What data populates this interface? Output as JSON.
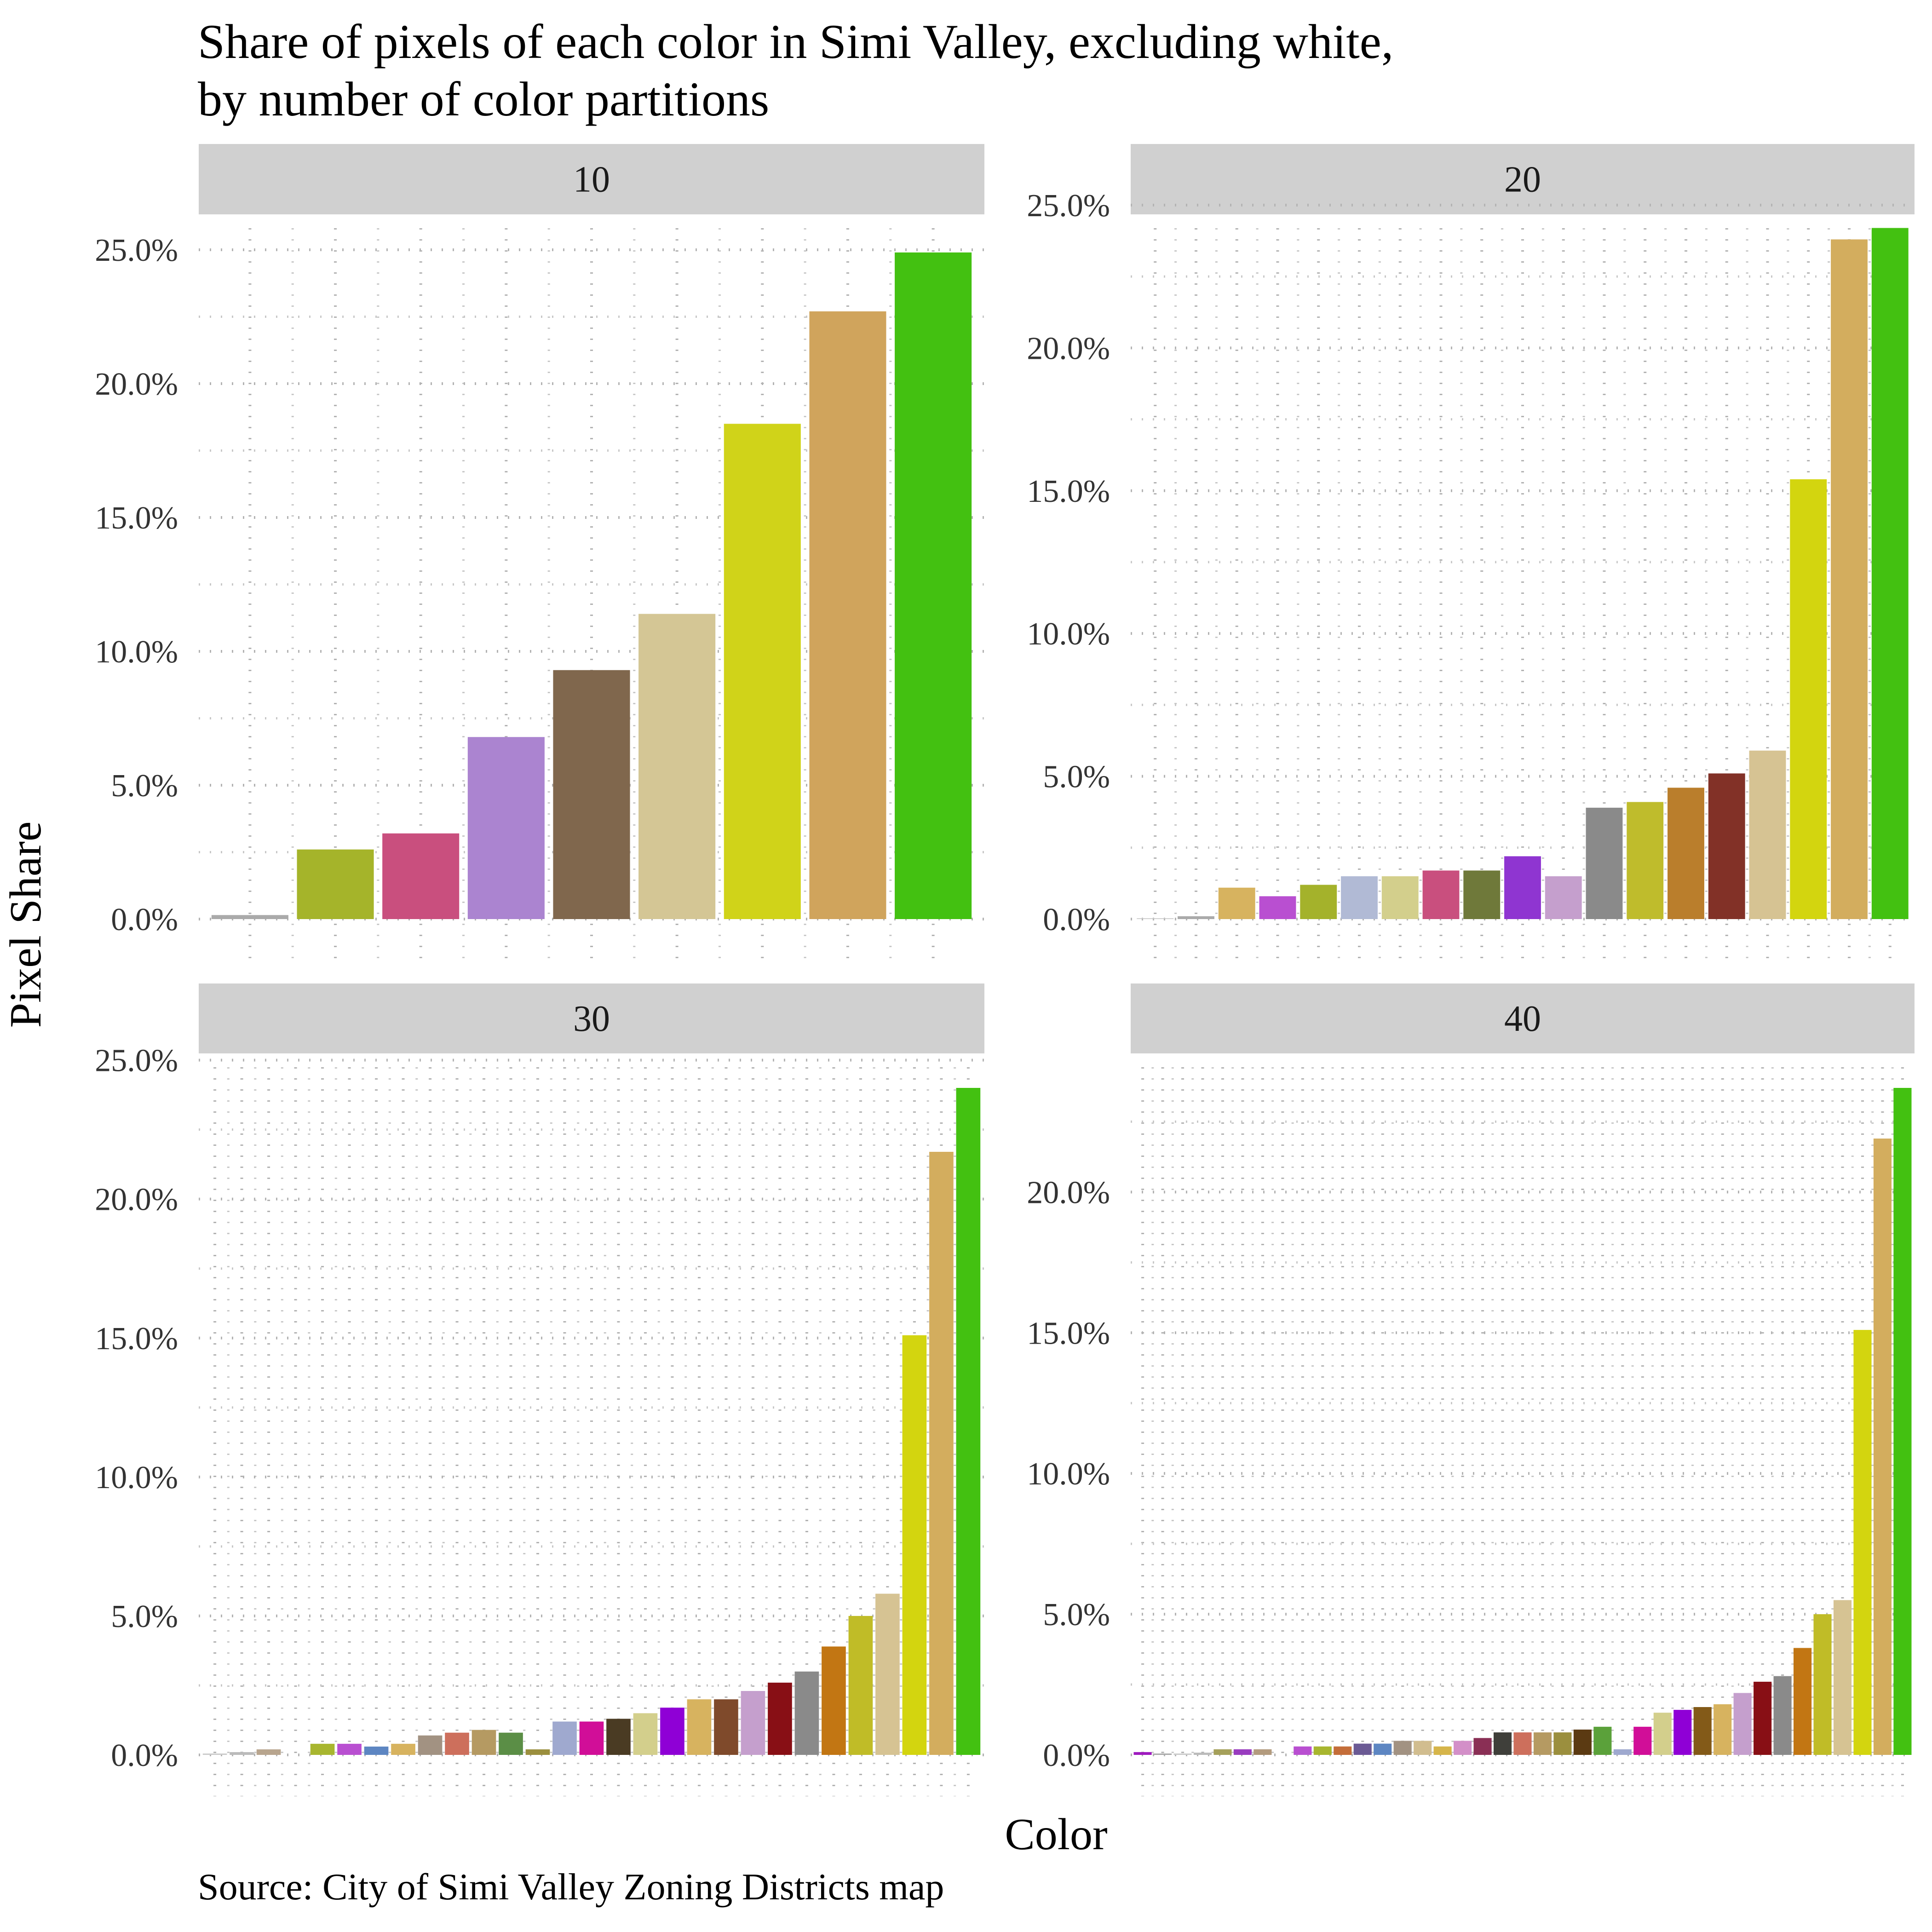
{
  "title": "Share of pixels of each color in Simi Valley, excluding white,\nby number of color partitions",
  "source": "Source: City of Simi Valley Zoning Districts map",
  "chart_data": {
    "type": "bar",
    "xlabel": "Color",
    "ylabel": "Pixel Share",
    "grid": "dotted, major and minor",
    "facets": [
      {
        "label": "10",
        "ylim": [
          0,
          0.25
        ],
        "yticks": [
          "0.0%",
          "5.0%",
          "10.0%",
          "15.0%",
          "20.0%",
          "25.0%"
        ],
        "ytick_values": [
          0,
          0.05,
          0.1,
          0.15,
          0.2,
          0.25
        ],
        "values": [
          0.0015,
          0.026,
          0.032,
          0.068,
          0.093,
          0.114,
          0.185,
          0.227,
          0.249
        ],
        "colors": [
          "#aaaaaa",
          "#a5b42a",
          "#c94f7e",
          "#ab84d0",
          "#80674d",
          "#d4c695",
          "#d0d319",
          "#d0a45c",
          "#43c111"
        ]
      },
      {
        "label": "20",
        "ylim": [
          0,
          0.24
        ],
        "yticks": [
          "0.0%",
          "5.0%",
          "10.0%",
          "15.0%",
          "20.0%",
          "25.0%"
        ],
        "ytick_values": [
          0,
          0.05,
          0.1,
          0.15,
          0.2,
          0.25
        ],
        "values": [
          0.0003,
          0.001,
          0.011,
          0.008,
          0.012,
          0.015,
          0.015,
          0.017,
          0.017,
          0.022,
          0.015,
          0.039,
          0.041,
          0.046,
          0.051,
          0.059,
          0.154,
          0.238,
          0.242
        ],
        "colors": [
          "#cccccc",
          "#aaaaaa",
          "#d7b35f",
          "#b94fd1",
          "#a4b22b",
          "#b1bad5",
          "#d3cf8c",
          "#c94f7e",
          "#6f793a",
          "#8f35d1",
          "#c59fcd",
          "#8a8a8a",
          "#bfbc2c",
          "#ba7e2c",
          "#823127",
          "#d6c393",
          "#d3d50f",
          "#d3ad5e",
          "#43c111"
        ]
      },
      {
        "label": "30",
        "ylim": [
          0,
          0.24
        ],
        "yticks": [
          "0.0%",
          "5.0%",
          "10.0%",
          "15.0%",
          "20.0%",
          "25.0%"
        ],
        "ytick_values": [
          0,
          0.05,
          0.1,
          0.15,
          0.2,
          0.25
        ],
        "values": [
          0.0005,
          0.001,
          0.002,
          0.0,
          0.004,
          0.004,
          0.003,
          0.004,
          0.007,
          0.008,
          0.009,
          0.008,
          0.002,
          0.012,
          0.012,
          0.013,
          0.015,
          0.017,
          0.02,
          0.02,
          0.023,
          0.026,
          0.03,
          0.039,
          0.05,
          0.058,
          0.151,
          0.217,
          0.24
        ],
        "colors": [
          "#cccccc",
          "#bbbbbb",
          "#b8a58e",
          "#cccccc",
          "#a8b62f",
          "#b94fd1",
          "#5d86c2",
          "#d7b35f",
          "#a29282",
          "#cd6f5c",
          "#b59a62",
          "#5b8e46",
          "#9b8f3e",
          "#9fa9cf",
          "#d10e98",
          "#4a3b23",
          "#d3cf8c",
          "#8f00d6",
          "#d7b35f",
          "#7f4a2b",
          "#c59fcd",
          "#880f15",
          "#8a8a8a",
          "#c27613",
          "#c0bc27",
          "#d6c393",
          "#d3d50f",
          "#d3ad5e",
          "#43c111"
        ]
      },
      {
        "label": "40",
        "ylim": [
          0,
          0.237
        ],
        "yticks": [
          "0.0%",
          "5.0%",
          "10.0%",
          "15.0%",
          "20.0%"
        ],
        "ytick_values": [
          0,
          0.05,
          0.1,
          0.15,
          0.2
        ],
        "values": [
          0.001,
          0.0005,
          0.0005,
          0.0008,
          0.002,
          0.002,
          0.002,
          0.0,
          0.003,
          0.003,
          0.003,
          0.004,
          0.004,
          0.005,
          0.005,
          0.003,
          0.005,
          0.006,
          0.008,
          0.008,
          0.008,
          0.008,
          0.009,
          0.01,
          0.002,
          0.01,
          0.015,
          0.016,
          0.017,
          0.018,
          0.022,
          0.026,
          0.028,
          0.038,
          0.05,
          0.055,
          0.151,
          0.219,
          0.237
        ],
        "colors": [
          "#9f1bbf",
          "#aaaaaa",
          "#cccccc",
          "#bbbbbb",
          "#a5a05a",
          "#993cbf",
          "#b39b7e",
          "#cccccc",
          "#b94fd1",
          "#a8b62f",
          "#c46d39",
          "#6b5a94",
          "#5d86c2",
          "#a29282",
          "#d1bd8f",
          "#d6b54a",
          "#d38fc8",
          "#8a2f55",
          "#3f3f3a",
          "#cd6f5c",
          "#b59a62",
          "#9b8f3e",
          "#5b3a12",
          "#5ba13a",
          "#9fa9cf",
          "#d10e98",
          "#d3cf8c",
          "#8f00d6",
          "#835a18",
          "#d7b35f",
          "#c59fcd",
          "#880f15",
          "#8a8a8a",
          "#c27613",
          "#c0bc27",
          "#d6c393",
          "#d3d50f",
          "#d3ad5e",
          "#43c111"
        ]
      }
    ]
  }
}
